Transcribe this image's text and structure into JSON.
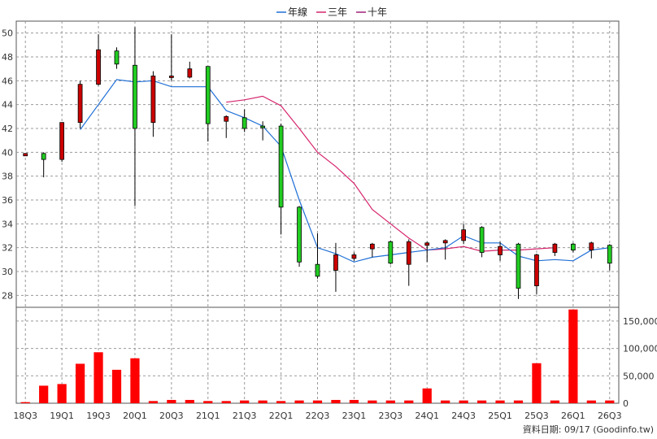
{
  "chart_data": {
    "type": "candlestick",
    "legend": [
      "年線",
      "三年",
      "十年"
    ],
    "colors": {
      "up_candle": "#cc0000",
      "down_candle": "#22cc22",
      "volume_bar": "#ff0000",
      "ma_year": "#1f6fd6",
      "ma_3y": "#d6256e",
      "ma_10y": "#a0207a",
      "grid": "#999999"
    },
    "x_labels": [
      "18Q3",
      "19Q1",
      "19Q3",
      "20Q1",
      "20Q3",
      "21Q1",
      "21Q3",
      "22Q1",
      "22Q3",
      "23Q1",
      "23Q3",
      "24Q1",
      "24Q3",
      "25Q1",
      "25Q3",
      "26Q1",
      "26Q3"
    ],
    "price_axis": {
      "min": 27,
      "max": 51,
      "ticks": [
        28,
        30,
        32,
        34,
        36,
        38,
        40,
        42,
        44,
        46,
        48,
        50
      ]
    },
    "volume_axis": {
      "min": 0,
      "max": 175000,
      "ticks": [
        0,
        50000,
        100000,
        150000
      ],
      "tick_labels": [
        "0",
        "50,000",
        "100,000",
        "150,000"
      ]
    },
    "candles": [
      {
        "period": "18Q3",
        "open": 39.7,
        "close": 39.9,
        "high": 39.9,
        "low": 39.7
      },
      {
        "period": "18Q4",
        "open": 39.9,
        "close": 39.4,
        "high": 40.0,
        "low": 37.9
      },
      {
        "period": "19Q1",
        "open": 39.4,
        "close": 42.5,
        "high": 42.5,
        "low": 39.2
      },
      {
        "period": "19Q2",
        "open": 42.5,
        "close": 45.7,
        "high": 46.0,
        "low": 42.0
      },
      {
        "period": "19Q3",
        "open": 45.7,
        "close": 48.6,
        "high": 49.9,
        "low": 45.6
      },
      {
        "period": "19Q4",
        "open": 48.5,
        "close": 47.4,
        "high": 48.8,
        "low": 47.0
      },
      {
        "period": "20Q1",
        "open": 47.3,
        "close": 42.0,
        "high": 50.5,
        "low": 35.5
      },
      {
        "period": "20Q2",
        "open": 42.5,
        "close": 46.4,
        "high": 46.8,
        "low": 41.3
      },
      {
        "period": "20Q3",
        "open": 46.3,
        "close": 46.4,
        "high": 49.9,
        "low": 46.0
      },
      {
        "period": "20Q4",
        "open": 46.3,
        "close": 47.0,
        "high": 47.6,
        "low": 46.2
      },
      {
        "period": "21Q1",
        "open": 47.2,
        "close": 42.4,
        "high": 47.2,
        "low": 40.9
      },
      {
        "period": "21Q2",
        "open": 42.6,
        "close": 43.0,
        "high": 43.1,
        "low": 41.2
      },
      {
        "period": "21Q3",
        "open": 42.9,
        "close": 42.0,
        "high": 43.6,
        "low": 41.7
      },
      {
        "period": "21Q4",
        "open": 42.2,
        "close": 42.1,
        "high": 42.6,
        "low": 41.0
      },
      {
        "period": "22Q1",
        "open": 42.2,
        "close": 35.4,
        "high": 42.4,
        "low": 33.1
      },
      {
        "period": "22Q2",
        "open": 35.4,
        "close": 30.8,
        "high": 35.5,
        "low": 30.4
      },
      {
        "period": "22Q3",
        "open": 30.6,
        "close": 29.6,
        "high": 33.2,
        "low": 29.4
      },
      {
        "period": "22Q4",
        "open": 30.1,
        "close": 31.4,
        "high": 32.4,
        "low": 28.3
      },
      {
        "period": "23Q1",
        "open": 31.1,
        "close": 31.4,
        "high": 31.6,
        "low": 30.9
      },
      {
        "period": "23Q2",
        "open": 31.9,
        "close": 32.3,
        "high": 32.4,
        "low": 31.2
      },
      {
        "period": "23Q3",
        "open": 32.5,
        "close": 30.7,
        "high": 32.6,
        "low": 30.6
      },
      {
        "period": "23Q4",
        "open": 30.6,
        "close": 32.5,
        "high": 32.7,
        "low": 28.8
      },
      {
        "period": "24Q1",
        "open": 32.2,
        "close": 32.4,
        "high": 32.5,
        "low": 30.8
      },
      {
        "period": "24Q2",
        "open": 32.4,
        "close": 32.6,
        "high": 32.7,
        "low": 31.0
      },
      {
        "period": "24Q3",
        "open": 32.6,
        "close": 33.5,
        "high": 34.0,
        "low": 32.3
      },
      {
        "period": "24Q4",
        "open": 33.7,
        "close": 31.6,
        "high": 33.8,
        "low": 31.2
      },
      {
        "period": "25Q1",
        "open": 31.4,
        "close": 32.1,
        "high": 32.5,
        "low": 30.9
      },
      {
        "period": "25Q2",
        "open": 32.3,
        "close": 28.6,
        "high": 32.4,
        "low": 27.7
      },
      {
        "period": "25Q3",
        "open": 28.8,
        "close": 31.4,
        "high": 31.5,
        "low": 28.1
      },
      {
        "period": "25Q4",
        "open": 31.6,
        "close": 32.3,
        "high": 32.4,
        "low": 31.3
      },
      {
        "period": "26Q1",
        "open": 32.3,
        "close": 31.8,
        "high": 32.4,
        "low": 31.6
      },
      {
        "period": "26Q2",
        "open": 31.8,
        "close": 32.4,
        "high": 32.5,
        "low": 31.1
      },
      {
        "period": "26Q3",
        "open": 32.2,
        "close": 30.7,
        "high": 32.3,
        "low": 30.1
      }
    ],
    "volume": [
      2000,
      32000,
      35000,
      72000,
      93000,
      61000,
      82000,
      4000,
      6000,
      6000,
      4000,
      4000,
      5000,
      5000,
      4000,
      5000,
      5000,
      6000,
      6000,
      5000,
      5000,
      5000,
      27000,
      5000,
      5000,
      5000,
      5000,
      5000,
      73000,
      5000,
      171000,
      5000,
      5000
    ],
    "ma_year": [
      null,
      null,
      null,
      41.9,
      44.0,
      46.1,
      45.9,
      46.0,
      45.5,
      45.5,
      45.5,
      43.5,
      42.9,
      42.2,
      40.5,
      36.0,
      32.0,
      31.5,
      30.8,
      31.2,
      31.4,
      31.6,
      31.8,
      32.0,
      33.0,
      32.4,
      32.4,
      31.3,
      30.9,
      31.0,
      30.9,
      31.8,
      32.0
    ],
    "ma_3y": [
      null,
      null,
      null,
      null,
      null,
      null,
      null,
      null,
      null,
      null,
      null,
      44.2,
      44.4,
      44.7,
      43.9,
      42.0,
      40.0,
      38.8,
      37.4,
      35.2,
      34.0,
      32.8,
      31.8,
      31.9,
      32.1,
      31.7,
      31.8,
      31.8,
      31.9,
      32.0,
      null,
      null,
      null
    ],
    "ma_10y": [
      null,
      null,
      null,
      null,
      null,
      null,
      null,
      null,
      null,
      null,
      null,
      null,
      null,
      null,
      null,
      null,
      null,
      null,
      null,
      null,
      null,
      null,
      null,
      null,
      null,
      null,
      null,
      null,
      null,
      null,
      null,
      null,
      null
    ],
    "credit": "資料日期: 09/17  (Goodinfo.tw)"
  }
}
